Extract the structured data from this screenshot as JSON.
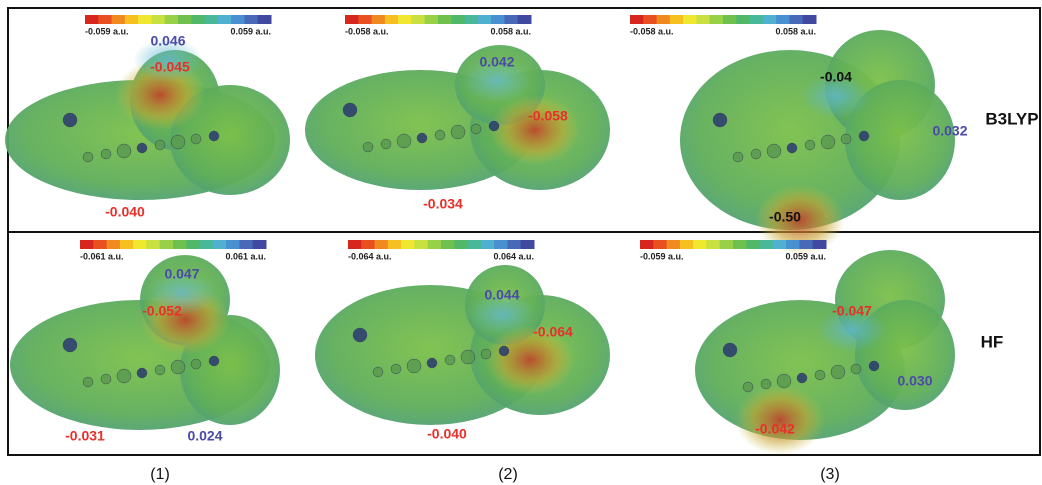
{
  "rows": [
    {
      "label": "B3LYP",
      "panels": [
        {
          "scale_min": "-0.059 a.u.",
          "scale_max": "0.059 a.u.",
          "annotations": [
            {
              "text": "0.046",
              "color": "blue"
            },
            {
              "text": "-0.045",
              "color": "red"
            },
            {
              "text": "-0.040",
              "color": "red"
            }
          ]
        },
        {
          "scale_min": "-0.058 a.u.",
          "scale_max": "0.058 a.u.",
          "annotations": [
            {
              "text": "0.042",
              "color": "blue"
            },
            {
              "text": "-0.058",
              "color": "red"
            },
            {
              "text": "-0.034",
              "color": "red"
            }
          ]
        },
        {
          "scale_min": "-0.058 a.u.",
          "scale_max": "0.058 a.u.",
          "annotations": [
            {
              "text": "-0.04",
              "color": "black"
            },
            {
              "text": "0.032",
              "color": "blue"
            },
            {
              "text": "-0.50",
              "color": "black"
            }
          ]
        }
      ]
    },
    {
      "label": "HF",
      "panels": [
        {
          "scale_min": "-0.061 a.u.",
          "scale_max": "0.061 a.u.",
          "annotations": [
            {
              "text": "0.047",
              "color": "blue"
            },
            {
              "text": "-0.052",
              "color": "red"
            },
            {
              "text": "-0.031",
              "color": "red"
            },
            {
              "text": "0.024",
              "color": "blue"
            }
          ]
        },
        {
          "scale_min": "-0.064 a.u.",
          "scale_max": "0.064 a.u.",
          "annotations": [
            {
              "text": "0.044",
              "color": "blue"
            },
            {
              "text": "-0.064",
              "color": "red"
            },
            {
              "text": "-0.040",
              "color": "red"
            }
          ]
        },
        {
          "scale_min": "-0.059 a.u.",
          "scale_max": "0.059 a.u.",
          "annotations": [
            {
              "text": "-0.047",
              "color": "red"
            },
            {
              "text": "0.030",
              "color": "blue"
            },
            {
              "text": "-0.042",
              "color": "red"
            }
          ]
        }
      ]
    }
  ],
  "columns": [
    "(1)",
    "(2)",
    "(3)"
  ]
}
